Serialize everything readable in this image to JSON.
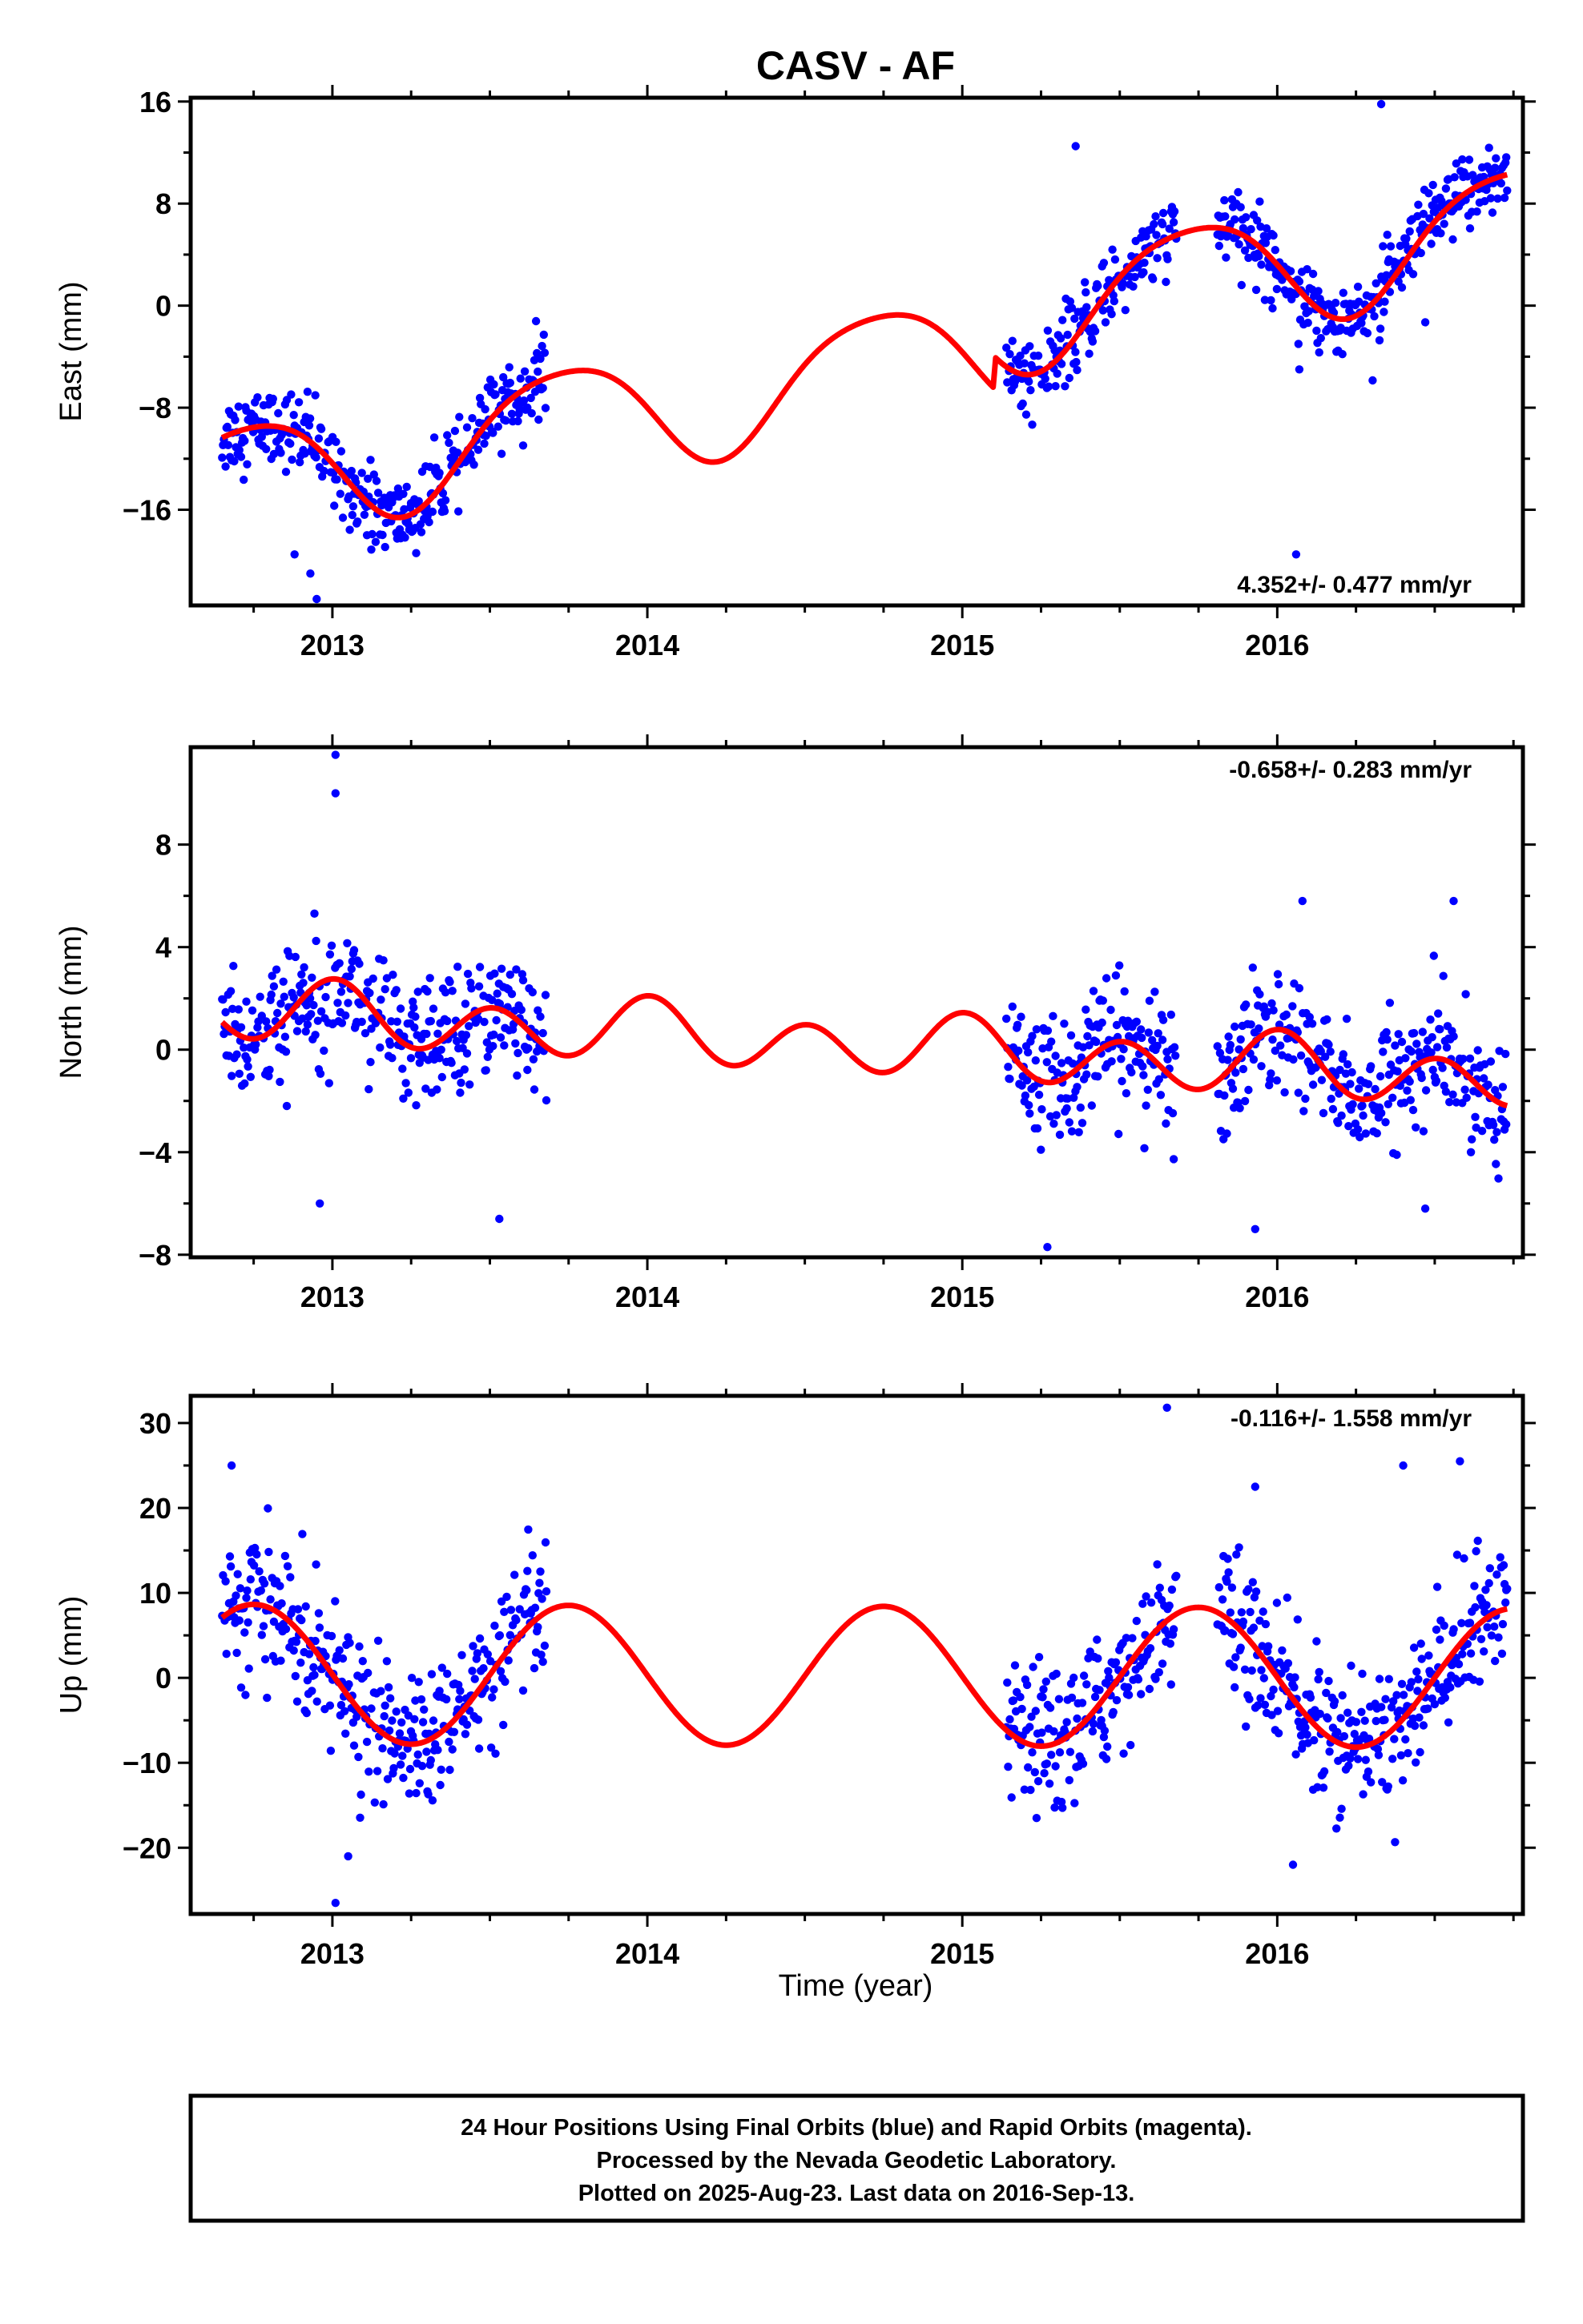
{
  "title": "CASV - AF",
  "xlabel": "Time (year)",
  "footer": {
    "lines": [
      "24 Hour Positions Using Final Orbits (blue) and Rapid Orbits (magenta).",
      "Processed by the Nevada Geodetic Laboratory.",
      "Plotted on 2025-Aug-23. Last data on 2016-Sep-13."
    ]
  },
  "colors": {
    "points": "#0000ff",
    "model": "#ff0000",
    "frame": "#000000"
  },
  "chart_data": [
    {
      "type": "scatter",
      "ylabel": "East (mm)",
      "rate": "4.352+/- 0.477 mm/yr",
      "rate_position": "bottom-right",
      "xlim": [
        2012.55,
        2016.78
      ],
      "ylim": [
        -23.5,
        16.3
      ],
      "yticks": [
        16,
        8,
        0,
        -8,
        -16
      ],
      "ytick_labels": [
        "16",
        "8",
        "0",
        "−8",
        "−16"
      ],
      "xticks": [
        2013,
        2014,
        2015,
        2016
      ],
      "xtick_labels": [
        "2013",
        "2014",
        "2015",
        "2016"
      ],
      "data_ranges": [
        [
          2012.65,
          2013.68
        ],
        [
          2015.14,
          2015.68
        ],
        [
          2015.81,
          2016.73
        ]
      ],
      "model": {
        "trend_mm_per_yr": 4.352,
        "intercept_at_2014": -8.0,
        "offset_2015_1": 2.5,
        "annual": {
          "cos": -0.6,
          "sin": -4.5
        },
        "semiannual": {
          "cos": 0.6,
          "sin": -0.3
        },
        "noise": 1.5
      },
      "outliers": [
        [
          2012.93,
          -21.0
        ],
        [
          2012.95,
          -23.0
        ],
        [
          2012.88,
          -19.5
        ],
        [
          2015.36,
          12.5
        ],
        [
          2016.07,
          -5.0
        ],
        [
          2016.06,
          -19.5
        ],
        [
          2016.33,
          15.8
        ],
        [
          2016.47,
          -1.3
        ]
      ]
    },
    {
      "type": "scatter",
      "ylabel": "North (mm)",
      "rate": "-0.658+/- 0.283 mm/yr",
      "rate_position": "top-right",
      "xlim": [
        2012.55,
        2016.78
      ],
      "ylim": [
        -8.1,
        11.8
      ],
      "yticks": [
        8,
        4,
        0,
        -4,
        -8
      ],
      "ytick_labels": [
        "8",
        "4",
        "0",
        "−4",
        "−8"
      ],
      "xticks": [
        2013,
        2014,
        2015,
        2016
      ],
      "xtick_labels": [
        "2013",
        "2014",
        "2015",
        "2016"
      ],
      "data_ranges": [
        [
          2012.65,
          2013.68
        ],
        [
          2015.14,
          2015.68
        ],
        [
          2015.81,
          2016.73
        ]
      ],
      "model": {
        "trend_mm_per_yr": -0.658,
        "intercept_at_2014": 0.65,
        "annual": {
          "cos": 0.4,
          "sin": 0.0
        },
        "semiannual": {
          "cos": 1.05,
          "sin": 0.1
        },
        "noise": 1.2
      },
      "outliers": [
        [
          2013.01,
          11.5
        ],
        [
          2013.01,
          10.0
        ],
        [
          2012.96,
          -6.0
        ],
        [
          2013.53,
          -6.6
        ],
        [
          2015.27,
          -7.7
        ],
        [
          2015.93,
          -7.0
        ],
        [
          2016.08,
          5.8
        ],
        [
          2016.56,
          5.8
        ],
        [
          2016.47,
          -6.2
        ]
      ]
    },
    {
      "type": "scatter",
      "ylabel": "Up (mm)",
      "rate": "-0.116+/- 1.558 mm/yr",
      "rate_position": "top-right",
      "xlim": [
        2012.55,
        2016.78
      ],
      "ylim": [
        -27.8,
        33.2
      ],
      "yticks": [
        30,
        20,
        10,
        0,
        -10,
        -20
      ],
      "ytick_labels": [
        "30",
        "20",
        "10",
        "0",
        "−10",
        "−20"
      ],
      "xticks": [
        2013,
        2014,
        2015,
        2016
      ],
      "xtick_labels": [
        "2013",
        "2014",
        "2015",
        "2016"
      ],
      "data_ranges": [
        [
          2012.65,
          2013.68
        ],
        [
          2015.14,
          2015.68
        ],
        [
          2015.81,
          2016.73
        ]
      ],
      "model": {
        "trend_mm_per_yr": -0.116,
        "intercept_at_2014": 0.3,
        "annual": {
          "cos": 0.0,
          "sin": -8.2
        },
        "semiannual": {
          "cos": 0.0,
          "sin": 0.0
        },
        "noise": 4.0
      },
      "outliers": [
        [
          2013.01,
          -26.5
        ],
        [
          2013.05,
          -21.0
        ],
        [
          2015.65,
          31.8
        ],
        [
          2015.93,
          22.5
        ],
        [
          2016.05,
          -22.0
        ],
        [
          2016.4,
          25.0
        ],
        [
          2016.58,
          25.5
        ],
        [
          2012.68,
          25.0
        ]
      ]
    }
  ]
}
